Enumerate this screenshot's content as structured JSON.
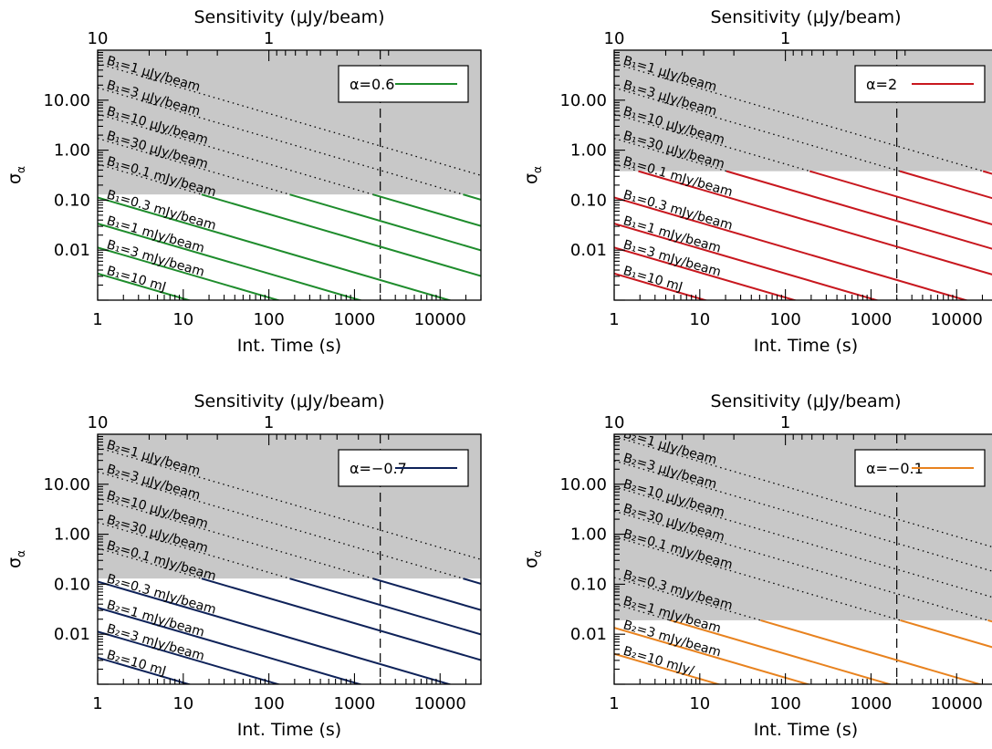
{
  "chart_data": [
    {
      "type": "line",
      "panel": "top-left",
      "xscale": "log",
      "yscale": "log",
      "xlim": [
        1,
        30000
      ],
      "ylim": [
        0.001,
        100
      ],
      "xlabel": "Int. Time (s)",
      "ylabel": "σ",
      "ylabel_subscript": "α",
      "xtick_labels": [
        "1",
        "10",
        "100",
        "1000",
        "10000"
      ],
      "ytick_labels": [
        "0.01",
        "0.10",
        "1.00",
        "10.00"
      ],
      "top_axis_label": "Sensitivity (μJy/beam)",
      "top_tick_labels": [
        "10",
        "1"
      ],
      "shaded_above_sigma": 0.13,
      "vline_time": 2000,
      "legend": {
        "label": "α=0.6",
        "color": "#1e8c2c",
        "placement": "top-right"
      },
      "curves": [
        {
          "label": "B₁=1 μJy/beam",
          "sigma_at_1s": 54.2
        },
        {
          "label": "B₁=3 μJy/beam",
          "sigma_at_1s": 17.7
        },
        {
          "label": "B₁=10 μJy/beam",
          "sigma_at_1s": 5.27
        },
        {
          "label": "B₁=30 μJy/beam",
          "sigma_at_1s": 1.72
        },
        {
          "label": "B₁=0.1 mJy/beam",
          "sigma_at_1s": 0.526
        },
        {
          "label": "B₁=0.3 mJy/beam",
          "sigma_at_1s": 0.113
        },
        {
          "label": "B₁=1 mJy/beam",
          "sigma_at_1s": 0.034
        },
        {
          "label": "B₁=3 mJy/beam",
          "sigma_at_1s": 0.0113
        },
        {
          "label": "B₁=10 mJ",
          "sigma_at_1s": 0.0034
        }
      ]
    },
    {
      "type": "line",
      "panel": "top-right",
      "xscale": "log",
      "yscale": "log",
      "xlim": [
        1,
        30000
      ],
      "ylim": [
        0.001,
        100
      ],
      "xlabel": "Int. Time (s)",
      "ylabel": "σ",
      "ylabel_subscript": "α",
      "xtick_labels": [
        "1",
        "10",
        "100",
        "1000",
        "10000"
      ],
      "ytick_labels": [
        "0.01",
        "0.10",
        "1.00",
        "10.00"
      ],
      "top_axis_label": "Sensitivity (μJy/beam)",
      "top_tick_labels": [
        "10",
        "1"
      ],
      "shaded_above_sigma": 0.38,
      "vline_time": 2000,
      "legend": {
        "label": "α=2",
        "color": "#c8171e",
        "placement": "top-right"
      },
      "curves": [
        {
          "label": "B₁=1 μJy/beam",
          "sigma_at_1s": 54.2
        },
        {
          "label": "B₁=3 μJy/beam",
          "sigma_at_1s": 17.7
        },
        {
          "label": "B₁=10 μJy/beam",
          "sigma_at_1s": 5.27
        },
        {
          "label": "B₁=30 μJy/beam",
          "sigma_at_1s": 1.72
        },
        {
          "label": "B₁=0.1 mJy/beam",
          "sigma_at_1s": 0.526
        },
        {
          "label": "B₁=0.3 mJy/beam",
          "sigma_at_1s": 0.113
        },
        {
          "label": "B₁=1 mJy/beam",
          "sigma_at_1s": 0.034
        },
        {
          "label": "B₁=3 mJy/beam",
          "sigma_at_1s": 0.0113
        },
        {
          "label": "B₁=10 mJ",
          "sigma_at_1s": 0.0034
        }
      ]
    },
    {
      "type": "line",
      "panel": "bottom-left",
      "xscale": "log",
      "yscale": "log",
      "xlim": [
        1,
        30000
      ],
      "ylim": [
        0.001,
        100
      ],
      "xlabel": "Int. Time (s)",
      "ylabel": "σ",
      "ylabel_subscript": "α",
      "xtick_labels": [
        "1",
        "10",
        "100",
        "1000",
        "10000"
      ],
      "ytick_labels": [
        "0.01",
        "0.10",
        "1.00",
        "10.00"
      ],
      "top_axis_label": "Sensitivity (μJy/beam)",
      "top_tick_labels": [
        "10",
        "1"
      ],
      "shaded_above_sigma": 0.13,
      "vline_time": 2000,
      "legend": {
        "label": "α=−0.7",
        "color": "#0e2259",
        "placement": "top-right"
      },
      "curves": [
        {
          "label": "B₂=1 μJy/beam",
          "sigma_at_1s": 54.2
        },
        {
          "label": "B₂=3 μJy/beam",
          "sigma_at_1s": 17.7
        },
        {
          "label": "B₂=10 μJy/beam",
          "sigma_at_1s": 5.27
        },
        {
          "label": "B₂=30 μJy/beam",
          "sigma_at_1s": 1.72
        },
        {
          "label": "B₂=0.1 mJy/beam",
          "sigma_at_1s": 0.526
        },
        {
          "label": "B₂=0.3 mJy/beam",
          "sigma_at_1s": 0.113
        },
        {
          "label": "B₂=1 mJy/beam",
          "sigma_at_1s": 0.034
        },
        {
          "label": "B₂=3 mJy/beam",
          "sigma_at_1s": 0.0113
        },
        {
          "label": "B₂=10 mJ",
          "sigma_at_1s": 0.0034
        }
      ]
    },
    {
      "type": "line",
      "panel": "bottom-right",
      "xscale": "log",
      "yscale": "log",
      "xlim": [
        1,
        30000
      ],
      "ylim": [
        0.001,
        100
      ],
      "xlabel": "Int. Time (s)",
      "ylabel": "σ",
      "ylabel_subscript": "α",
      "xtick_labels": [
        "1",
        "10",
        "100",
        "1000",
        "10000"
      ],
      "ytick_labels": [
        "0.01",
        "0.10",
        "1.00",
        "10.00"
      ],
      "top_axis_label": "Sensitivity (μJy/beam)",
      "top_tick_labels": [
        "10",
        "1"
      ],
      "shaded_above_sigma": 0.019,
      "vline_time": 2000,
      "legend": {
        "label": "α=−0.1",
        "color": "#e8821e",
        "placement": "top-right"
      },
      "curves": [
        {
          "label": "B₂=1 μJy/beam",
          "sigma_at_1s": 90.0
        },
        {
          "label": "B₂=3 μJy/beam",
          "sigma_at_1s": 29.5
        },
        {
          "label": "B₂=10 μJy/beam",
          "sigma_at_1s": 8.9
        },
        {
          "label": "B₂=30 μJy/beam",
          "sigma_at_1s": 2.89
        },
        {
          "label": "B₂=0.1 mJy/beam",
          "sigma_at_1s": 0.89
        },
        {
          "label": "B₂=0.3 mJy/beam",
          "sigma_at_1s": 0.136
        },
        {
          "label": "B₂=1 mJy/beam",
          "sigma_at_1s": 0.0405
        },
        {
          "label": "B₂=3 mJy/beam",
          "sigma_at_1s": 0.0135
        },
        {
          "label": "B₂=10 mJy/",
          "sigma_at_1s": 0.00405
        }
      ]
    }
  ]
}
